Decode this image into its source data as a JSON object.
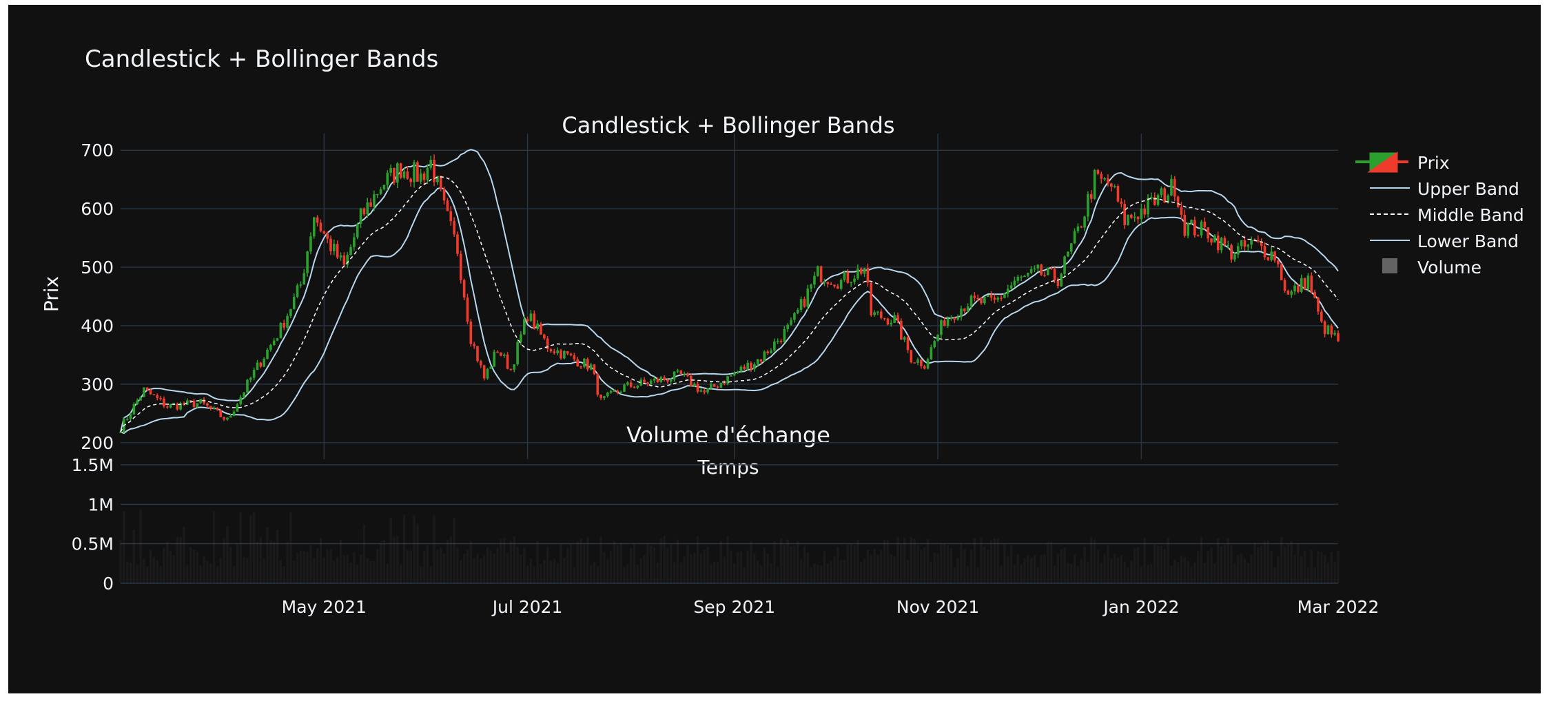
{
  "title": "Candlestick + Bollinger Bands",
  "price_panel_title": "Candlestick + Bollinger Bands",
  "volume_panel_title": "Volume d'échange",
  "colors": {
    "background": "#111111",
    "grid": "#283442",
    "increasing": "#2ca02c",
    "decreasing": "#ef3b2c",
    "band": "#b8d8ef",
    "middle": "#ffffff",
    "volume": "#636363"
  },
  "legend": {
    "placement": "right",
    "items": [
      {
        "label": "Prix",
        "kind": "candle"
      },
      {
        "label": "Upper Band",
        "kind": "line"
      },
      {
        "label": "Middle Band",
        "kind": "dash"
      },
      {
        "label": "Lower Band",
        "kind": "line"
      },
      {
        "label": "Volume",
        "kind": "bar"
      }
    ]
  },
  "chart_data": [
    {
      "type": "candlestick",
      "title": "Candlestick + Bollinger Bands",
      "ylabel": "Prix",
      "xlabel": "Temps",
      "x_range": [
        "2021-03-01",
        "2022-03-01"
      ],
      "ylim": [
        195,
        705
      ],
      "yticks": [
        200,
        300,
        400,
        500,
        600,
        700
      ],
      "grid": true,
      "series": [
        {
          "name": "Prix",
          "kind": "candlestick"
        },
        {
          "name": "Upper Band",
          "kind": "line"
        },
        {
          "name": "Middle Band",
          "kind": "dashed-line"
        },
        {
          "name": "Lower Band",
          "kind": "line"
        }
      ],
      "close_anchors": [
        [
          "2021-03-01",
          225
        ],
        [
          "2021-03-08",
          290
        ],
        [
          "2021-03-15",
          262
        ],
        [
          "2021-03-25",
          268
        ],
        [
          "2021-04-02",
          238
        ],
        [
          "2021-04-10",
          320
        ],
        [
          "2021-04-18",
          395
        ],
        [
          "2021-04-24",
          470
        ],
        [
          "2021-04-28",
          590
        ],
        [
          "2021-05-02",
          545
        ],
        [
          "2021-05-07",
          500
        ],
        [
          "2021-05-12",
          585
        ],
        [
          "2021-05-18",
          640
        ],
        [
          "2021-05-24",
          670
        ],
        [
          "2021-05-30",
          655
        ],
        [
          "2021-06-02",
          680
        ],
        [
          "2021-06-06",
          600
        ],
        [
          "2021-06-10",
          530
        ],
        [
          "2021-06-14",
          380
        ],
        [
          "2021-06-18",
          310
        ],
        [
          "2021-06-22",
          360
        ],
        [
          "2021-06-26",
          325
        ],
        [
          "2021-07-01",
          420
        ],
        [
          "2021-07-07",
          365
        ],
        [
          "2021-07-14",
          345
        ],
        [
          "2021-07-20",
          330
        ],
        [
          "2021-07-23",
          270
        ],
        [
          "2021-07-30",
          295
        ],
        [
          "2021-08-08",
          305
        ],
        [
          "2021-08-16",
          315
        ],
        [
          "2021-08-23",
          285
        ],
        [
          "2021-09-01",
          318
        ],
        [
          "2021-09-09",
          345
        ],
        [
          "2021-09-18",
          400
        ],
        [
          "2021-09-26",
          490
        ],
        [
          "2021-10-03",
          475
        ],
        [
          "2021-10-10",
          500
        ],
        [
          "2021-10-12",
          420
        ],
        [
          "2021-10-19",
          410
        ],
        [
          "2021-10-24",
          345
        ],
        [
          "2021-10-28",
          335
        ],
        [
          "2021-11-03",
          410
        ],
        [
          "2021-11-10",
          440
        ],
        [
          "2021-11-18",
          440
        ],
        [
          "2021-11-24",
          475
        ],
        [
          "2021-12-01",
          490
        ],
        [
          "2021-12-07",
          480
        ],
        [
          "2021-12-13",
          560
        ],
        [
          "2021-12-18",
          650
        ],
        [
          "2021-12-23",
          640
        ],
        [
          "2021-12-27",
          580
        ],
        [
          "2022-01-02",
          600
        ],
        [
          "2022-01-08",
          625
        ],
        [
          "2022-01-11",
          640
        ],
        [
          "2022-01-14",
          570
        ],
        [
          "2022-01-21",
          560
        ],
        [
          "2022-01-28",
          525
        ],
        [
          "2022-02-04",
          540
        ],
        [
          "2022-02-10",
          520
        ],
        [
          "2022-02-14",
          450
        ],
        [
          "2022-02-20",
          480
        ],
        [
          "2022-02-24",
          400
        ],
        [
          "2022-03-01",
          375
        ]
      ],
      "x_end": "2022-03-01"
    },
    {
      "type": "bar",
      "title": "Volume d'échange",
      "series": [
        {
          "name": "Volume"
        }
      ],
      "ylim": [
        0,
        1500000
      ],
      "yticks": [
        {
          "value": 0,
          "label": "0"
        },
        {
          "value": 500000,
          "label": "0.5M"
        },
        {
          "value": 1000000,
          "label": "1M"
        },
        {
          "value": 1500000,
          "label": "1.5M"
        }
      ],
      "xticks": [
        {
          "date": "2021-05-01",
          "label": "May 2021"
        },
        {
          "date": "2021-07-01",
          "label": "Jul 2021"
        },
        {
          "date": "2021-09-01",
          "label": "Sep 2021"
        },
        {
          "date": "2021-11-01",
          "label": "Nov 2021"
        },
        {
          "date": "2022-01-01",
          "label": "Jan 2022"
        },
        {
          "date": "2022-03-01",
          "label": "Mar 2022"
        }
      ],
      "typical_volume": 400000,
      "peak_volume": 950000
    }
  ]
}
